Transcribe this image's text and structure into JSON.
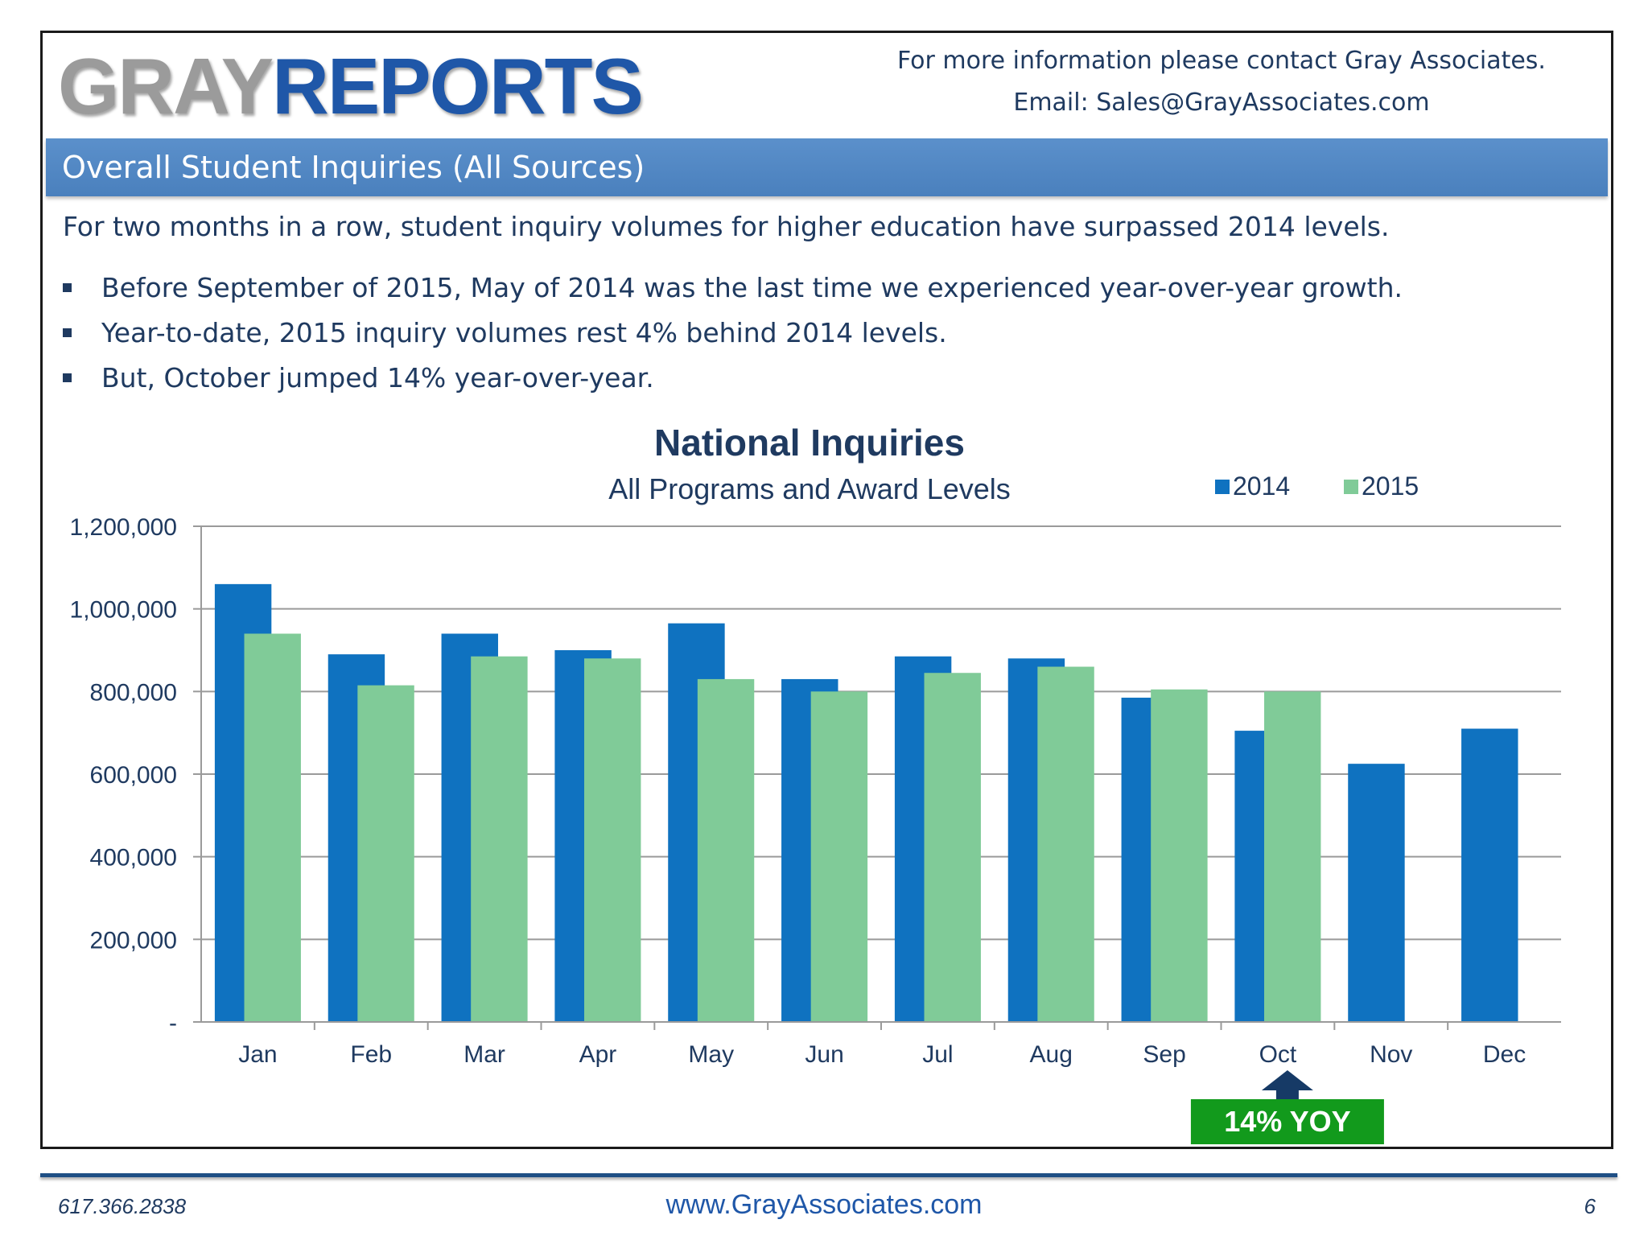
{
  "header": {
    "logo_gray": "GRAY",
    "logo_reports": "REPORTS",
    "contact_line1": "For more information please contact Gray Associates.",
    "contact_line2": "Email:  Sales@GrayAssociates.com"
  },
  "section_title": "Overall Student Inquiries (All Sources)",
  "intro": "For two months in a row, student inquiry volumes for higher education have surpassed 2014 levels.",
  "bullets": [
    "Before September of 2015, May of 2014 was the last time we experienced year-over-year growth.",
    "Year-to-date, 2015 inquiry volumes rest 4% behind 2014 levels.",
    "But, October jumped 14% year-over-year."
  ],
  "chart_data": {
    "type": "bar",
    "title": "National Inquiries",
    "subtitle": "All Programs and Award Levels",
    "categories": [
      "Jan",
      "Feb",
      "Mar",
      "Apr",
      "May",
      "Jun",
      "Jul",
      "Aug",
      "Sep",
      "Oct",
      "Nov",
      "Dec"
    ],
    "series": [
      {
        "name": "2014",
        "color": "#0f72c0",
        "values": [
          1060000,
          890000,
          940000,
          900000,
          965000,
          830000,
          885000,
          880000,
          785000,
          705000,
          625000,
          710000
        ]
      },
      {
        "name": "2015",
        "color": "#80cb98",
        "values": [
          940000,
          815000,
          885000,
          880000,
          830000,
          800000,
          845000,
          860000,
          805000,
          800000,
          null,
          null
        ]
      }
    ],
    "ylim": [
      0,
      1200000
    ],
    "yticks": [
      0,
      200000,
      400000,
      600000,
      800000,
      1000000,
      1200000
    ],
    "ytick_labels": [
      "-",
      "200,000",
      "400,000",
      "600,000",
      "800,000",
      "1,000,000",
      "1,200,000"
    ],
    "grid": true,
    "legend_position": "top-right",
    "annotation": {
      "category": "Oct",
      "text": "14% YOY",
      "color": "#129a1c"
    }
  },
  "footer": {
    "phone": "617.366.2838",
    "website": "www.GrayAssociates.com",
    "page_number": "6"
  }
}
